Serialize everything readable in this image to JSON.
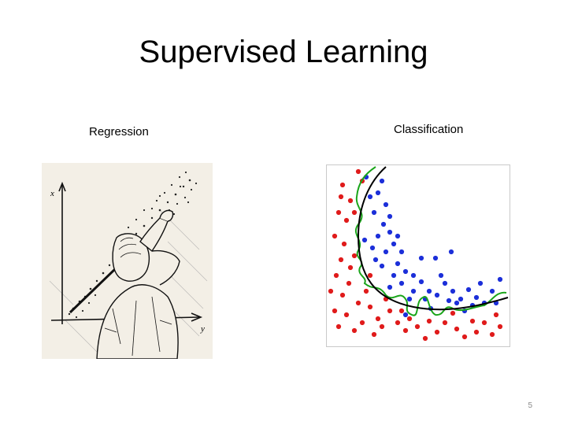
{
  "slide": {
    "title": "Supervised Learning",
    "page_number": "5"
  },
  "regression": {
    "label": "Regression",
    "axis_x_label": "x",
    "axis_y_label": "y"
  },
  "classification": {
    "label": "Classification"
  },
  "colors": {
    "class_a": "#e01b1b",
    "class_b": "#1c2fd9",
    "smooth_boundary": "#000000",
    "overfit_boundary": "#1aa51a"
  }
}
